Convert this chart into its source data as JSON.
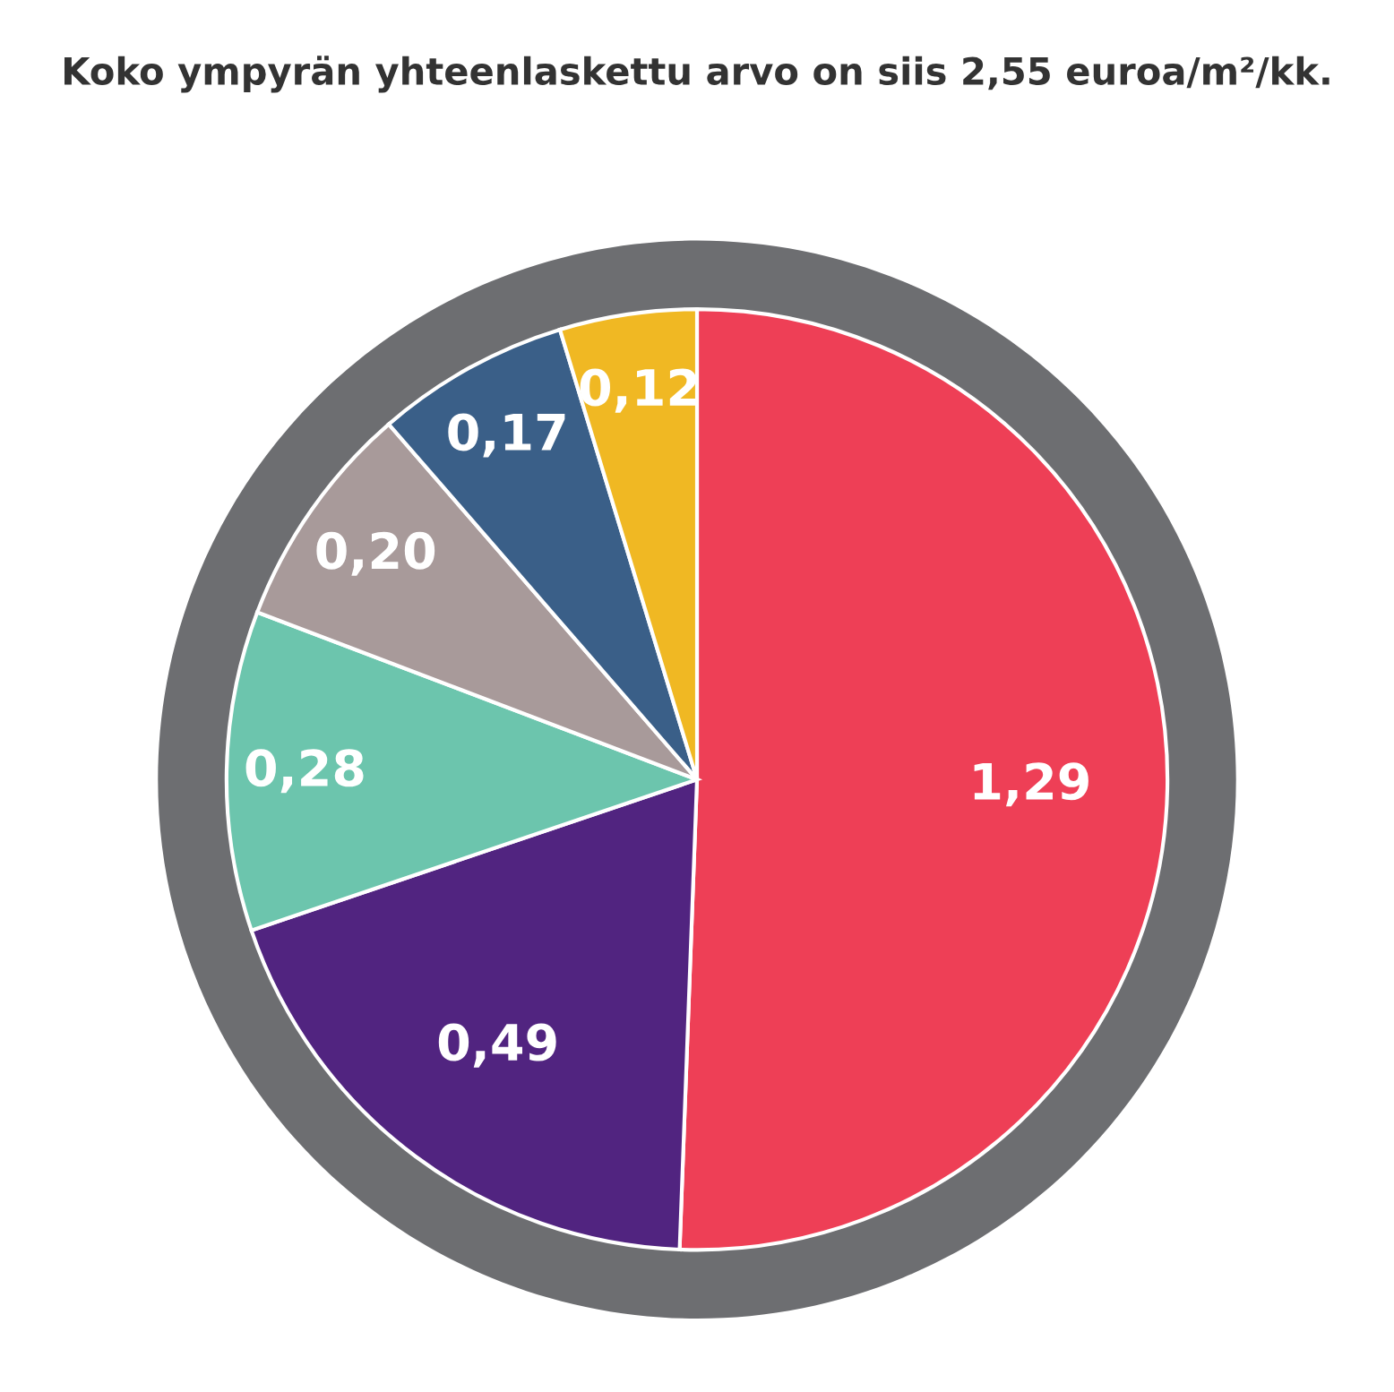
{
  "chart_data": {
    "type": "pie",
    "title": "Koko ympyrän yhteenlaskettu arvo on siis 2,55 euroa/m²/kk.",
    "categories": [
      null,
      null,
      null,
      null,
      null,
      null
    ],
    "values": [
      1.29,
      0.49,
      0.28,
      0.2,
      0.17,
      0.12
    ],
    "value_labels": [
      "1,29",
      "0,49",
      "0,28",
      "0,20",
      "0,17",
      "0,12"
    ],
    "colors": [
      "#ee3f56",
      "#512480",
      "#6cc5ad",
      "#a89a9a",
      "#3a5f88",
      "#f0b823"
    ]
  }
}
